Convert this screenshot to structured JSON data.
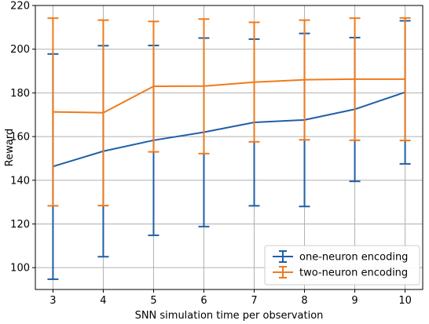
{
  "chart_data": {
    "type": "line",
    "xlabel": "SNN simulation time per observation",
    "ylabel": "Reward",
    "x": [
      3,
      4,
      5,
      6,
      7,
      8,
      9,
      10
    ],
    "xlim": [
      2.65,
      10.35
    ],
    "ylim": [
      90,
      220
    ],
    "xticks": [
      "3",
      "4",
      "5",
      "6",
      "7",
      "8",
      "9",
      "10"
    ],
    "yticks": [
      "100",
      "120",
      "140",
      "160",
      "180",
      "200",
      "220"
    ],
    "grid": true,
    "legend_position": "lower right",
    "series": [
      {
        "name": "one-neuron encoding",
        "color": "#1f5fa6",
        "values": [
          146.3,
          153.3,
          158.3,
          162.0,
          166.5,
          167.6,
          172.5,
          180.3
        ],
        "err_low": [
          94.7,
          105.0,
          114.8,
          118.8,
          128.3,
          128.0,
          139.5,
          147.5
        ],
        "err_high": [
          197.8,
          201.6,
          201.7,
          205.1,
          204.6,
          207.2,
          205.3,
          213.0
        ]
      },
      {
        "name": "two-neuron encoding",
        "color": "#ef7b1d",
        "values": [
          171.3,
          170.9,
          183.0,
          183.1,
          184.9,
          186.0,
          186.3,
          186.3
        ],
        "err_low": [
          128.3,
          128.4,
          153.0,
          152.2,
          157.6,
          158.5,
          158.3,
          158.2
        ],
        "err_high": [
          214.2,
          213.3,
          212.7,
          213.8,
          212.3,
          213.3,
          214.2,
          214.3
        ]
      }
    ]
  }
}
